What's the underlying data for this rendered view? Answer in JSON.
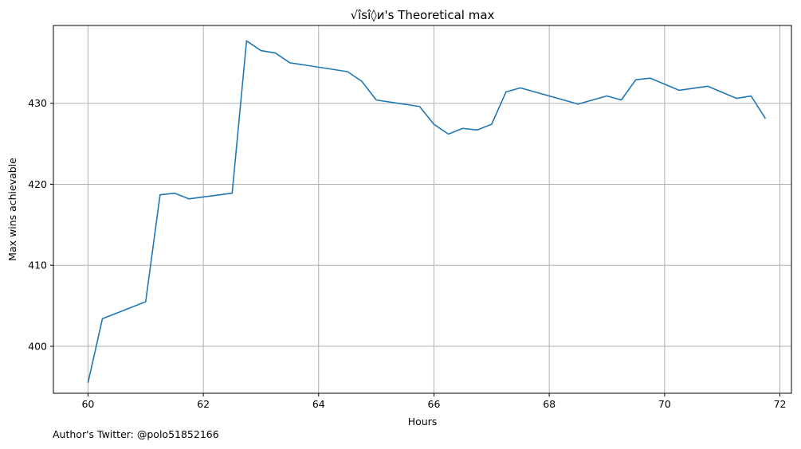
{
  "chart_data": {
    "type": "line",
    "title": "√îsî◊и's Theoretical max",
    "xlabel": "Hours",
    "ylabel": "Max wins achievable",
    "xlim": [
      59.4,
      72.2
    ],
    "ylim": [
      394.2,
      439.6
    ],
    "xticks": [
      60,
      62,
      64,
      66,
      68,
      70,
      72
    ],
    "yticks": [
      400,
      410,
      420,
      430
    ],
    "grid": true,
    "line_color": "#1f77b4",
    "series": [
      {
        "x": [
          60,
          60.25,
          61,
          61.25,
          61.5,
          61.75,
          62.5,
          62.75,
          63,
          63.25,
          63.5,
          64.5,
          64.75,
          65,
          65.75,
          66,
          66.25,
          66.5,
          66.75,
          67,
          67.25,
          67.5,
          68.5,
          69,
          69.25,
          69.5,
          69.75,
          70.25,
          70.75,
          71.25,
          71.5,
          71.75
        ],
        "y": [
          395.5,
          403.4,
          405.5,
          418.7,
          418.9,
          418.2,
          418.9,
          437.7,
          436.5,
          436.2,
          435,
          433.9,
          432.7,
          430.4,
          429.6,
          427.4,
          426.2,
          426.9,
          426.7,
          427.4,
          431.4,
          431.9,
          429.9,
          430.9,
          430.4,
          432.9,
          433.1,
          431.6,
          432.1,
          430.6,
          430.9,
          428.1
        ]
      }
    ]
  },
  "footer": "Author's Twitter: @polo51852166"
}
